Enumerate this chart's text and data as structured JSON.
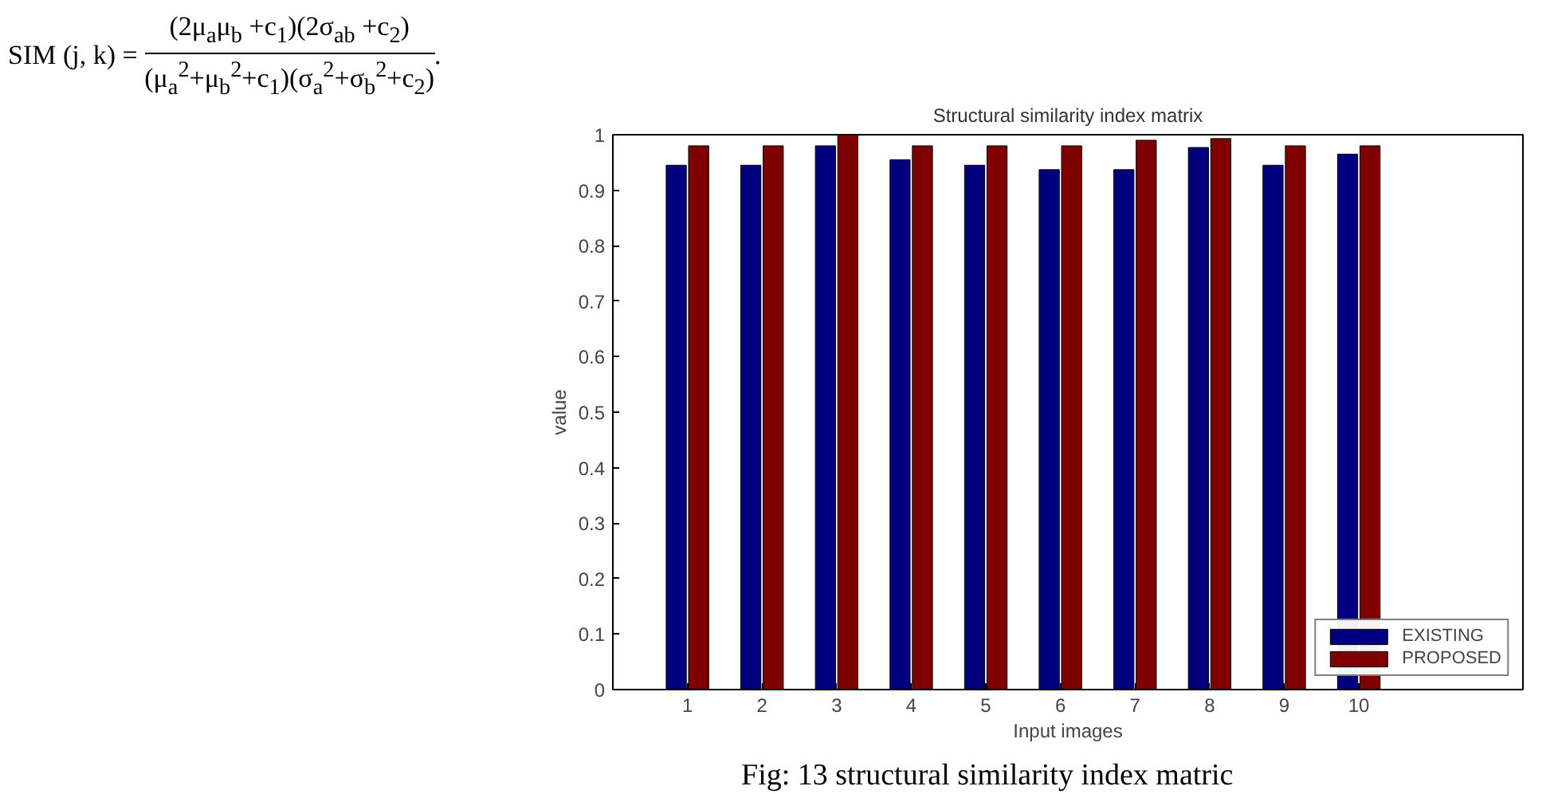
{
  "chart_data": {
    "type": "bar",
    "title": "Structural similarity index matrix",
    "xlabel": "Input images",
    "ylabel": "value",
    "x": [
      1,
      2,
      3,
      4,
      5,
      6,
      7,
      8,
      9,
      10
    ],
    "series": [
      {
        "name": "EXISTING",
        "color": "#00007f",
        "values": [
          0.945,
          0.945,
          0.98,
          0.955,
          0.945,
          0.937,
          0.937,
          0.977,
          0.945,
          0.965
        ]
      },
      {
        "name": "PROPOSED",
        "color": "#7f0000",
        "values": [
          0.98,
          0.98,
          1.0,
          0.98,
          0.98,
          0.98,
          0.99,
          0.993,
          0.98,
          0.98
        ]
      }
    ],
    "xlim": [
      0,
      12.2
    ],
    "xticks": [
      1,
      2,
      3,
      4,
      5,
      6,
      7,
      8,
      9,
      10
    ],
    "ylim": [
      0,
      1
    ],
    "yticks": [
      0,
      0.1,
      0.2,
      0.3,
      0.4,
      0.5,
      0.6,
      0.7,
      0.8,
      0.9,
      1
    ],
    "grid": false,
    "legend": "bottom right",
    "annotations": [
      "SIM (j, k) =",
      "(2μ$_{a}$μ$_{b}$ +c$_{1}$)(2σ$_{ab}$ +c$_{2}$)",
      "(μ$_{a}$$^{2}$+μ$_{b}$$^{2}$+c$_{1}$)(σ$_{a}$$^{2}$+σ$_{b}$$^{2}$+c$_{2}$)",
      ".",
      "Fig: 13 structural similarity index matric"
    ]
  }
}
